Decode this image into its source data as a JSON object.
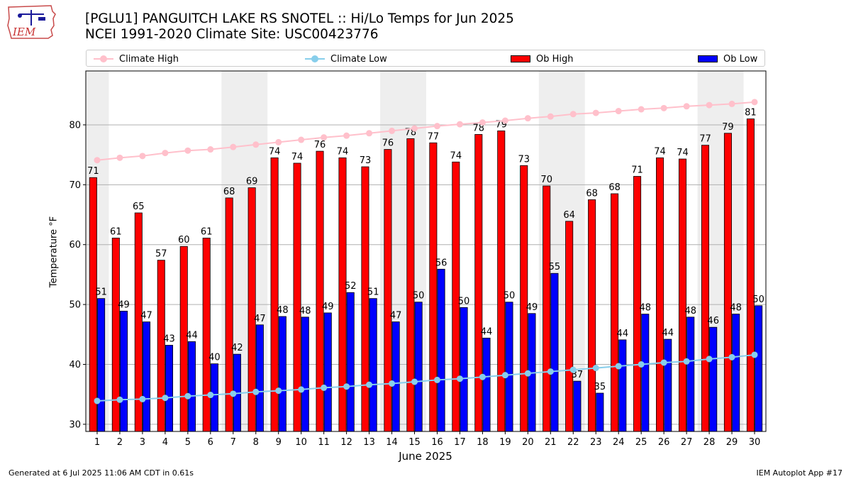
{
  "header": {
    "title_line1": "[PGLU1] PANGUITCH LAKE RS SNOTEL :: Hi/Lo Temps for Jun 2025",
    "title_line2": "NCEI 1991-2020 Climate Site: USC00423776",
    "logo_text": "IEM"
  },
  "legend": {
    "climate_high": "Climate High",
    "climate_low": "Climate Low",
    "ob_high": "Ob High",
    "ob_low": "Ob Low"
  },
  "footer": {
    "generated": "Generated at 6 Jul 2025 11:06 AM CDT in 0.61s",
    "app": "IEM Autoplot App #17"
  },
  "colors": {
    "ob_high": "#ff0000",
    "ob_low": "#0000ff",
    "climate_high": "#ffc0cb",
    "climate_low": "#87ceeb",
    "weekend_shade": "#eeeeee",
    "grid": "#b0b0b0"
  },
  "chart_data": {
    "type": "bar",
    "xlabel": "June 2025",
    "ylabel": "Temperature °F",
    "ylim": [
      28.8,
      89
    ],
    "yticks": [
      30,
      40,
      50,
      60,
      70,
      80
    ],
    "grid": "horizontal",
    "legend_position": "top",
    "categories": [
      1,
      2,
      3,
      4,
      5,
      6,
      7,
      8,
      9,
      10,
      11,
      12,
      13,
      14,
      15,
      16,
      17,
      18,
      19,
      20,
      21,
      22,
      23,
      24,
      25,
      26,
      27,
      28,
      29,
      30
    ],
    "shaded_days": [
      1,
      7,
      8,
      14,
      15,
      21,
      22,
      28,
      29
    ],
    "series": [
      {
        "name": "Ob High",
        "kind": "bar",
        "values": [
          71,
          61,
          65,
          57,
          60,
          61,
          68,
          69,
          74,
          74,
          76,
          74,
          73,
          76,
          78,
          77,
          74,
          78,
          79,
          73,
          70,
          64,
          68,
          68,
          71,
          74,
          74,
          77,
          79,
          81
        ],
        "bar_tops": [
          71.2,
          61.1,
          65.3,
          57.4,
          59.7,
          61.1,
          67.8,
          69.5,
          74.5,
          73.6,
          75.6,
          74.5,
          73.0,
          75.9,
          77.7,
          77.0,
          73.8,
          78.4,
          79.0,
          73.2,
          69.8,
          63.9,
          67.5,
          68.5,
          71.4,
          74.5,
          74.3,
          76.6,
          78.6,
          81.0
        ]
      },
      {
        "name": "Ob Low",
        "kind": "bar",
        "values": [
          51,
          49,
          47,
          43,
          44,
          40,
          42,
          47,
          48,
          48,
          49,
          52,
          51,
          47,
          50,
          56,
          50,
          44,
          50,
          49,
          55,
          37,
          35,
          44,
          48,
          44,
          48,
          46,
          48,
          50
        ],
        "bar_tops": [
          51.0,
          48.9,
          47.1,
          43.2,
          43.8,
          40.1,
          41.7,
          46.6,
          48.0,
          47.9,
          48.6,
          52.0,
          51.0,
          47.1,
          50.4,
          55.9,
          49.5,
          44.4,
          50.4,
          48.5,
          55.2,
          37.2,
          35.2,
          44.1,
          48.4,
          44.2,
          47.9,
          46.2,
          48.4,
          49.8
        ]
      },
      {
        "name": "Climate High",
        "kind": "line",
        "values": [
          74.1,
          74.5,
          74.8,
          75.3,
          75.7,
          75.9,
          76.3,
          76.7,
          77.1,
          77.5,
          77.9,
          78.2,
          78.6,
          79.0,
          79.4,
          79.8,
          80.1,
          80.4,
          80.7,
          81.1,
          81.4,
          81.8,
          82.0,
          82.3,
          82.6,
          82.8,
          83.1,
          83.3,
          83.5,
          83.8
        ]
      },
      {
        "name": "Climate Low",
        "kind": "line",
        "values": [
          33.9,
          34.1,
          34.2,
          34.4,
          34.7,
          34.9,
          35.1,
          35.4,
          35.6,
          35.8,
          36.1,
          36.3,
          36.6,
          36.8,
          37.1,
          37.4,
          37.6,
          37.9,
          38.2,
          38.5,
          38.8,
          39.1,
          39.4,
          39.7,
          40.0,
          40.3,
          40.5,
          40.9,
          41.2,
          41.6
        ]
      }
    ]
  }
}
